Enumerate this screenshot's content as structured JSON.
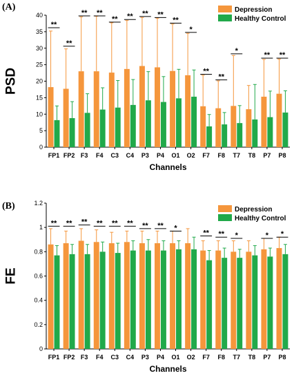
{
  "colors": {
    "depression": "#f5963c",
    "healthy": "#21a94a",
    "axis": "#000000"
  },
  "chart_data": [
    {
      "type": "bar",
      "panel_label": "(A)",
      "xlabel": "Channels",
      "ylabel": "PSD",
      "ylim": [
        0,
        40
      ],
      "yticks": [
        "0",
        "5",
        "10",
        "15",
        "20",
        "25",
        "30",
        "35",
        "40"
      ],
      "categories": [
        "FP1",
        "FP2",
        "F3",
        "F4",
        "C3",
        "C4",
        "P3",
        "P4",
        "O1",
        "O2",
        "F7",
        "F8",
        "T7",
        "T8",
        "P7",
        "P8"
      ],
      "legend_position": "top-right",
      "series": [
        {
          "name": "Depression",
          "values": [
            18.2,
            17.7,
            23.0,
            23.0,
            22.6,
            23.7,
            24.6,
            24.2,
            23.1,
            21.8,
            12.4,
            11.8,
            12.5,
            11.5,
            15.3,
            16.2
          ],
          "errors": [
            17.0,
            12.1,
            16.5,
            16.7,
            15.1,
            14.7,
            14.7,
            14.9,
            14.2,
            12.7,
            9.4,
            8.3,
            15.3,
            7.2,
            11.3,
            10.5
          ]
        },
        {
          "name": "Healthy Control",
          "values": [
            8.2,
            8.8,
            10.4,
            11.4,
            12.0,
            12.8,
            14.2,
            13.7,
            14.8,
            15.3,
            6.3,
            6.9,
            7.3,
            8.4,
            9.1,
            10.5
          ],
          "errors": [
            4.3,
            5.0,
            5.8,
            6.6,
            8.2,
            7.7,
            8.7,
            7.7,
            8.8,
            8.1,
            3.6,
            3.6,
            5.3,
            10.6,
            7.9,
            6.6
          ]
        }
      ],
      "significance": [
        "**",
        "**",
        "**",
        "**",
        "**",
        "**",
        "**",
        "**",
        "**",
        "*",
        "**",
        "**",
        "*",
        "",
        "**",
        "**"
      ],
      "significance_y": [
        36.2,
        30.6,
        39.8,
        39.8,
        37.9,
        38.7,
        39.6,
        39.3,
        37.6,
        34.8,
        22.1,
        20.4,
        28.3,
        0,
        27.0,
        27.0
      ]
    },
    {
      "type": "bar",
      "panel_label": "(B)",
      "xlabel": "Channels",
      "ylabel": "FE",
      "ylim": [
        0,
        1.2
      ],
      "yticks": [
        "0",
        "0.2",
        "0.4",
        "0.6",
        "0.8",
        "1",
        "1.2"
      ],
      "categories": [
        "FP1",
        "FP2",
        "F3",
        "F4",
        "C3",
        "C4",
        "P3",
        "P4",
        "O1",
        "O2",
        "F7",
        "F8",
        "T7",
        "T8",
        "P7",
        "P8"
      ],
      "legend_position": "top-right",
      "series": [
        {
          "name": "Depression",
          "values": [
            0.86,
            0.87,
            0.89,
            0.88,
            0.87,
            0.88,
            0.87,
            0.87,
            0.87,
            0.87,
            0.81,
            0.81,
            0.8,
            0.8,
            0.82,
            0.83
          ],
          "errors": [
            0.13,
            0.1,
            0.1,
            0.1,
            0.09,
            0.09,
            0.1,
            0.1,
            0.1,
            0.12,
            0.08,
            0.08,
            0.09,
            0.09,
            0.09,
            0.09
          ]
        },
        {
          "name": "Healthy Control",
          "values": [
            0.77,
            0.78,
            0.78,
            0.8,
            0.79,
            0.81,
            0.81,
            0.81,
            0.82,
            0.82,
            0.73,
            0.75,
            0.75,
            0.77,
            0.76,
            0.78
          ],
          "errors": [
            0.08,
            0.08,
            0.08,
            0.08,
            0.08,
            0.08,
            0.09,
            0.08,
            0.07,
            0.1,
            0.08,
            0.08,
            0.07,
            0.08,
            0.07,
            0.08
          ]
        }
      ],
      "significance": [
        "**",
        "**",
        "**",
        "**",
        "**",
        "**",
        "**",
        "**",
        "*",
        "",
        "**",
        "**",
        "*",
        "",
        "*",
        "*"
      ],
      "significance_y": [
        1.01,
        1.01,
        1.02,
        1.01,
        1.01,
        1.01,
        0.99,
        0.99,
        0.97,
        0,
        0.93,
        0.92,
        0.91,
        0,
        0.91,
        0.92
      ]
    }
  ]
}
